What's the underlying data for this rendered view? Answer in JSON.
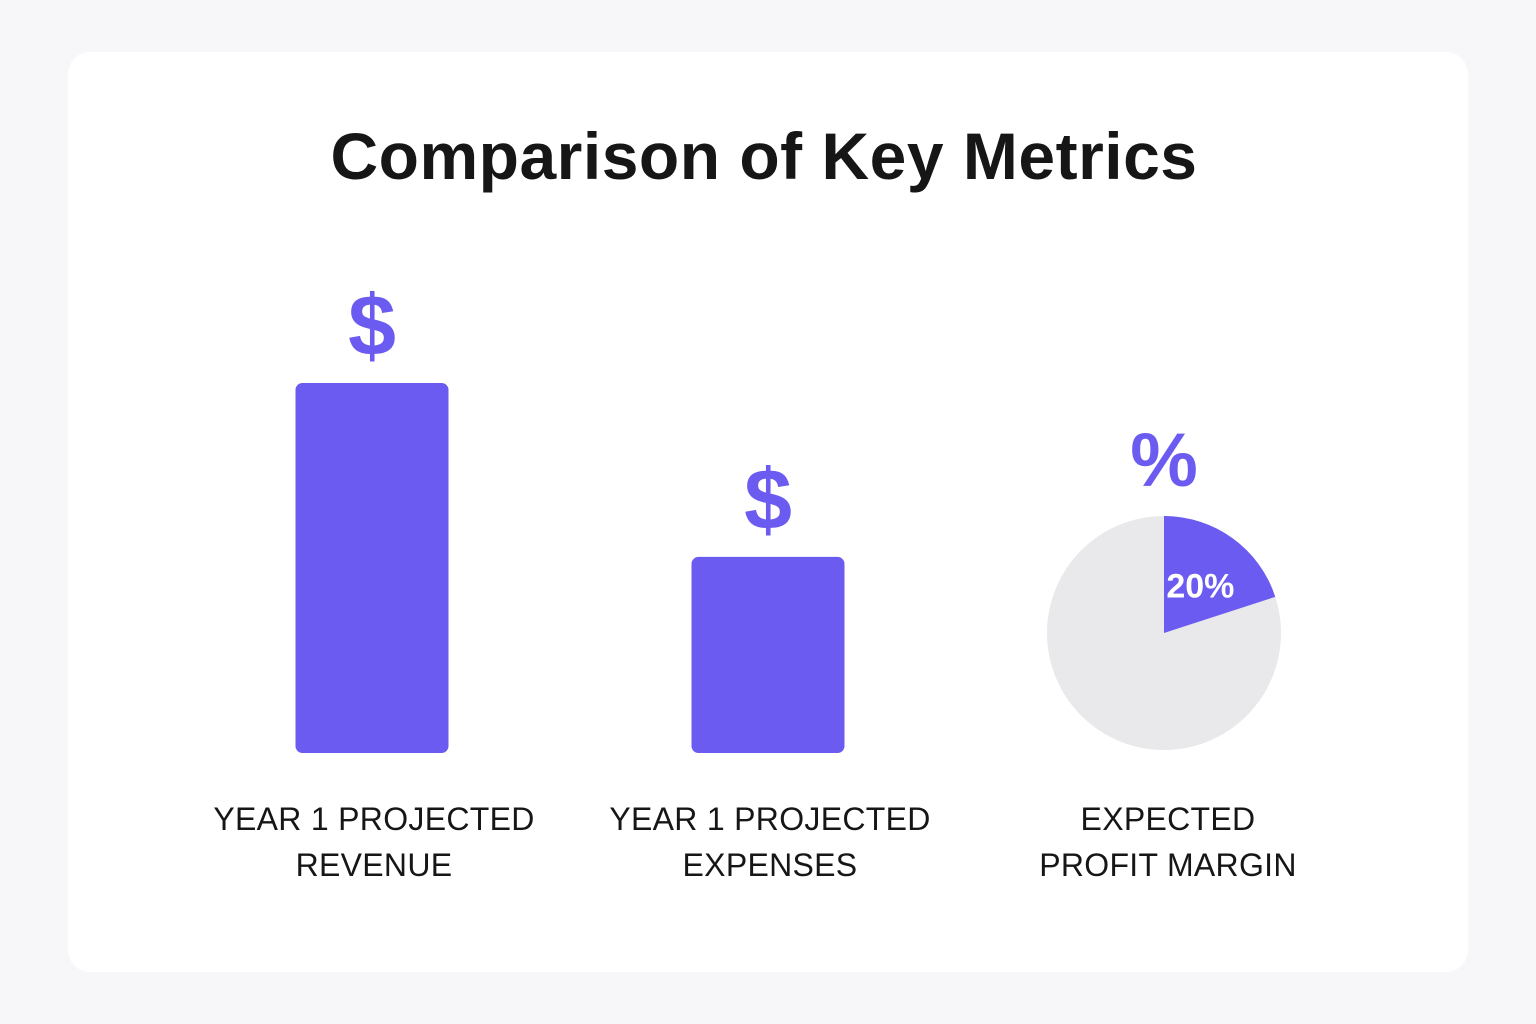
{
  "title": "Comparison of Key Metrics",
  "colors": {
    "accent": "#6b5bf0",
    "pie_rest": "#e9e9eb",
    "text": "#161616",
    "background": "#f7f7f9",
    "card": "#ffffff"
  },
  "chart_data": [
    {
      "type": "bar",
      "categories": [
        "YEAR 1 PROJECTED REVENUE",
        "YEAR 1 PROJECTED EXPENSES"
      ],
      "values": [
        100,
        53
      ],
      "value_icons": [
        "$",
        "$"
      ],
      "icon_names": [
        "dollar-icon",
        "dollar-icon"
      ],
      "axes_visible": false,
      "grid": false
    },
    {
      "type": "pie",
      "categories": [
        "EXPECTED PROFIT MARGIN"
      ],
      "value": 20,
      "value_label": "20%",
      "value_icon": "%",
      "icon_name": "percent-icon"
    }
  ],
  "labels": {
    "revenue": [
      "YEAR 1 PROJECTED",
      "REVENUE"
    ],
    "expenses": [
      "YEAR 1 PROJECTED",
      "EXPENSES"
    ],
    "margin": [
      "EXPECTED",
      "PROFIT MARGIN"
    ]
  }
}
